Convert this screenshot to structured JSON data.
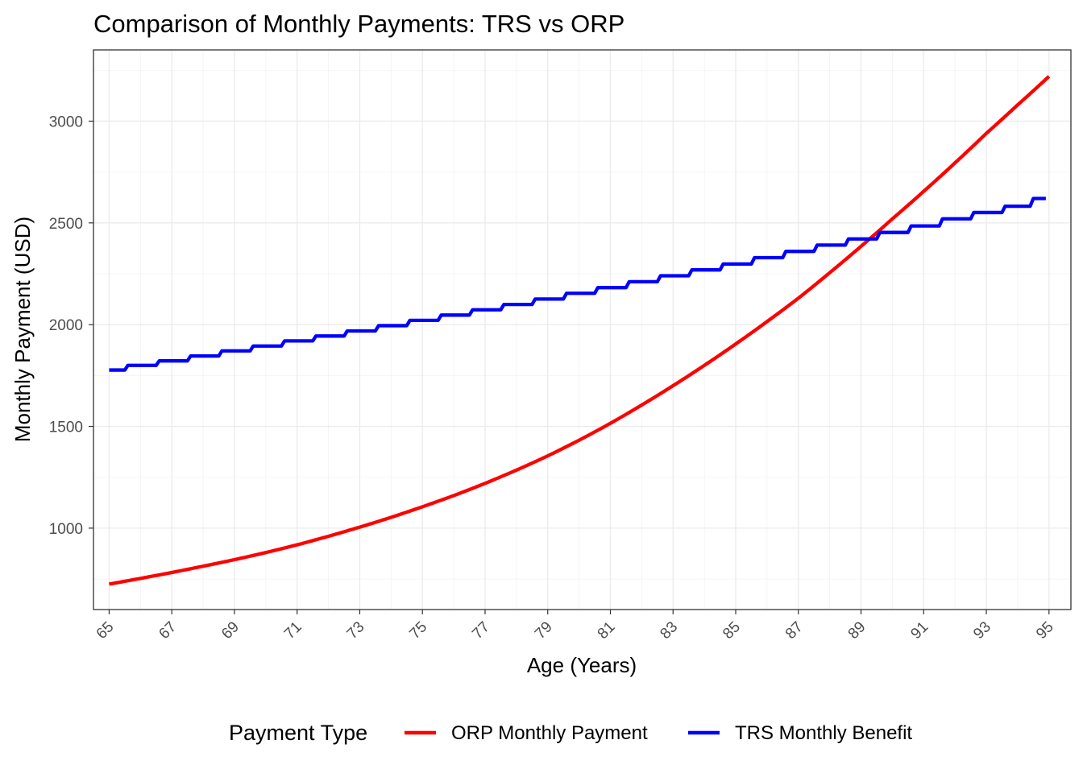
{
  "chart_data": {
    "type": "line",
    "title": "Comparison of Monthly Payments: TRS vs ORP",
    "xlabel": "Age (Years)",
    "ylabel": "Monthly Payment (USD)",
    "xlim": [
      64.5,
      95.7
    ],
    "ylim": [
      600,
      3350
    ],
    "xticks": [
      "65",
      "67",
      "69",
      "71",
      "73",
      "75",
      "77",
      "79",
      "81",
      "83",
      "85",
      "87",
      "89",
      "91",
      "93",
      "95"
    ],
    "yticks": [
      "1000",
      "1500",
      "2000",
      "2500",
      "3000"
    ],
    "grid": true,
    "legend": {
      "title": "Payment Type",
      "position": "bottom"
    },
    "series": [
      {
        "name": "ORP Monthly Payment",
        "color": "#FF0000",
        "shape": "smooth",
        "start_age": 65,
        "end_age": 95,
        "x": [
          65,
          66,
          67,
          68,
          69,
          70,
          71,
          72,
          73,
          74,
          75,
          76,
          77,
          78,
          79,
          80,
          81,
          82,
          83,
          84,
          85,
          86,
          87,
          88,
          89,
          90,
          91,
          92,
          93,
          94,
          95
        ],
        "values": [
          725,
          753,
          782,
          813,
          845,
          880,
          918,
          960,
          1005,
          1053,
          1105,
          1160,
          1220,
          1285,
          1355,
          1432,
          1515,
          1605,
          1700,
          1800,
          1905,
          2015,
          2130,
          2255,
          2385,
          2520,
          2655,
          2795,
          2940,
          3080,
          3220
        ]
      },
      {
        "name": "TRS Monthly Benefit",
        "color": "#0000FF",
        "shape": "step",
        "start_age": 65,
        "end_age": 94.9,
        "x": [
          65,
          66,
          67,
          68,
          69,
          70,
          71,
          72,
          73,
          74,
          75,
          76,
          77,
          78,
          79,
          80,
          81,
          82,
          83,
          84,
          85,
          86,
          87,
          88,
          89,
          90,
          91,
          92,
          93,
          94
        ],
        "values": [
          1777,
          1800,
          1822,
          1846,
          1871,
          1895,
          1920,
          1944,
          1969,
          1995,
          2021,
          2047,
          2073,
          2099,
          2126,
          2154,
          2182,
          2211,
          2240,
          2269,
          2298,
          2329,
          2360,
          2391,
          2421,
          2453,
          2485,
          2520,
          2551,
          2582
        ],
        "last_value": 2620
      }
    ]
  }
}
